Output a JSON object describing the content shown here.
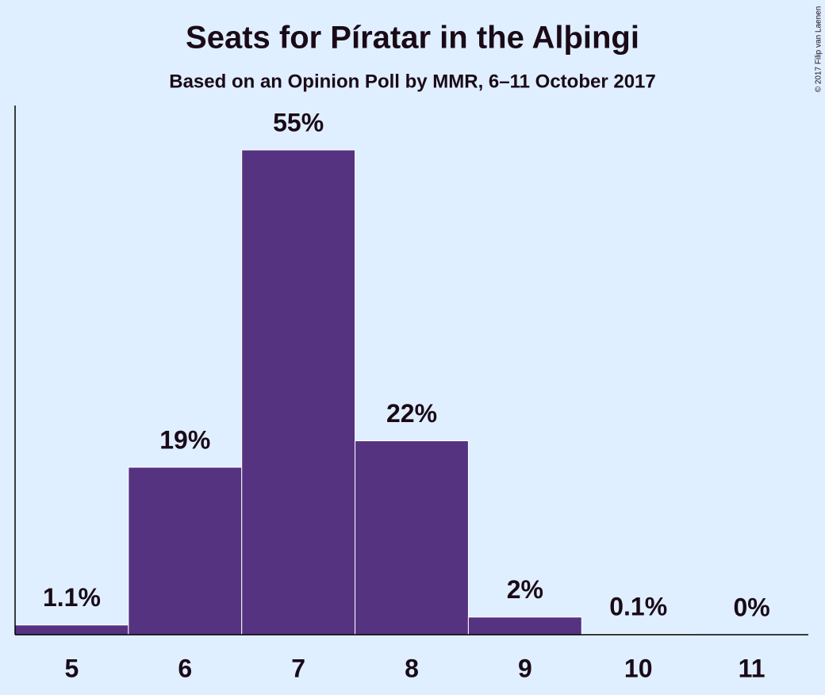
{
  "chart_data": {
    "type": "bar",
    "title": "Seats for Píratar in the Alþingi",
    "subtitle": "Based on an Opinion Poll by MMR, 6–11 October 2017",
    "copyright": "© 2017 Filip van Laenen",
    "categories": [
      "5",
      "6",
      "7",
      "8",
      "9",
      "10",
      "11"
    ],
    "values": [
      1.1,
      19,
      55,
      22,
      2,
      0.1,
      0
    ],
    "value_labels": [
      "1.1%",
      "19%",
      "55%",
      "22%",
      "2%",
      "0.1%",
      "0%"
    ],
    "color": "#553380"
  }
}
